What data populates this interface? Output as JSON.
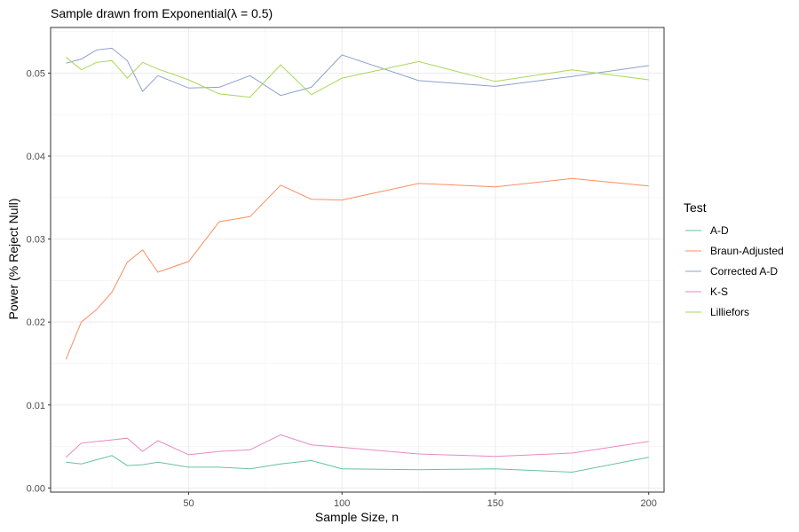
{
  "chart_data": {
    "type": "line",
    "title": "Sample drawn from Exponential(λ = 0.5)",
    "xlabel": "Sample Size, n",
    "ylabel": "Power (% Reject Null)",
    "xlim": [
      5,
      205
    ],
    "ylim": [
      -0.0005,
      0.0555
    ],
    "x_ticks": [
      50,
      100,
      150,
      200
    ],
    "x_tick_labels": [
      "50",
      "100",
      "150",
      "200"
    ],
    "y_ticks": [
      0,
      0.01,
      0.02,
      0.03,
      0.04,
      0.05
    ],
    "y_tick_labels": [
      "0.00",
      "0.01",
      "0.02",
      "0.03",
      "0.04",
      "0.05"
    ],
    "grid": true,
    "legend_title": "Test",
    "legend_position": "right",
    "x": [
      10,
      15,
      20,
      25,
      30,
      35,
      40,
      50,
      60,
      70,
      80,
      90,
      100,
      125,
      150,
      175,
      200
    ],
    "series": [
      {
        "name": "A-D",
        "color": "#66c2a5",
        "values": [
          0.0031,
          0.0029,
          0.0034,
          0.0039,
          0.0027,
          0.0028,
          0.0031,
          0.0025,
          0.0025,
          0.0023,
          0.0029,
          0.0033,
          0.0023,
          0.0022,
          0.0023,
          0.0019,
          0.0037
        ]
      },
      {
        "name": "Braun-Adjusted",
        "color": "#fc8d62",
        "values": [
          0.0155,
          0.02,
          0.0215,
          0.0236,
          0.0272,
          0.0287,
          0.026,
          0.0273,
          0.0321,
          0.0327,
          0.0365,
          0.0348,
          0.0347,
          0.0367,
          0.0363,
          0.0373,
          0.0364
        ]
      },
      {
        "name": "Corrected A-D",
        "color": "#8da0cb",
        "values": [
          0.0512,
          0.0517,
          0.0528,
          0.053,
          0.0515,
          0.0478,
          0.0497,
          0.0482,
          0.0483,
          0.0497,
          0.0473,
          0.0483,
          0.0522,
          0.0491,
          0.0484,
          0.0496,
          0.0509
        ]
      },
      {
        "name": "K-S",
        "color": "#e78ac3",
        "values": [
          0.0037,
          0.0054,
          0.0056,
          0.0058,
          0.006,
          0.0044,
          0.0057,
          0.004,
          0.0044,
          0.0046,
          0.0064,
          0.0052,
          0.0049,
          0.0041,
          0.0038,
          0.0042,
          0.0056
        ]
      },
      {
        "name": "Lilliefors",
        "color": "#a6d854",
        "values": [
          0.0519,
          0.0504,
          0.0513,
          0.0515,
          0.0494,
          0.0513,
          0.0505,
          0.0492,
          0.0475,
          0.0471,
          0.051,
          0.0474,
          0.0494,
          0.0514,
          0.049,
          0.0504,
          0.0492
        ]
      }
    ]
  }
}
